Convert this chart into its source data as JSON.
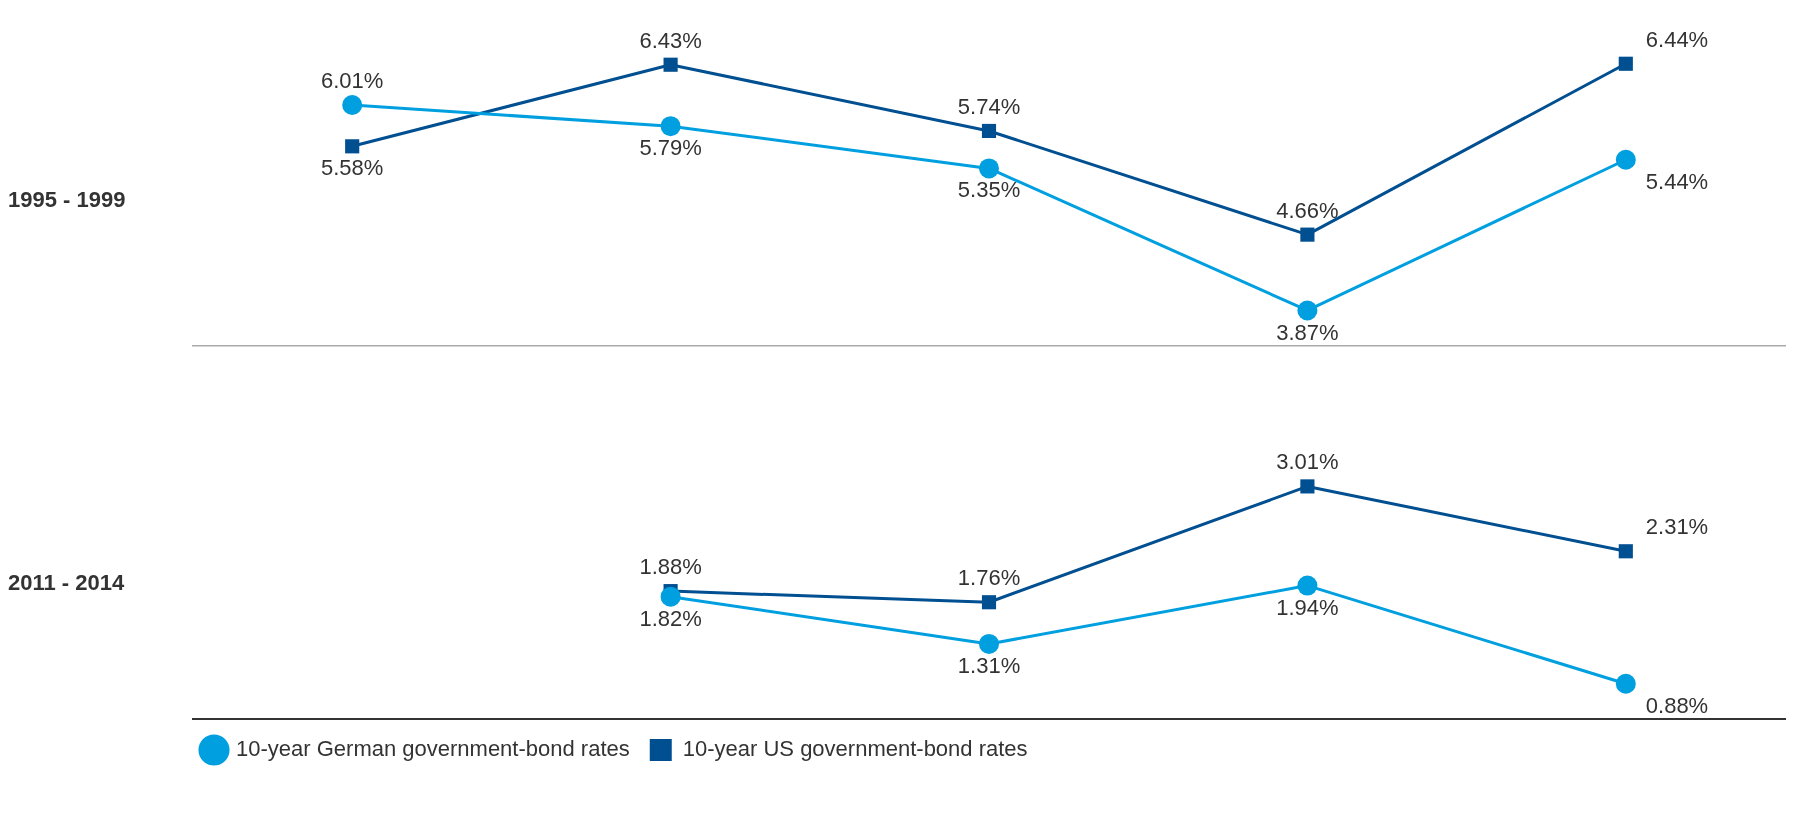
{
  "chart_data": [
    {
      "type": "line",
      "ylabel": "1995 - 1999",
      "categories": [
        null,
        null,
        null,
        null,
        null
      ],
      "tick_labels": false,
      "grid": false,
      "legend": false,
      "line_style": "solid",
      "series": [
        {
          "color": "#009fdf",
          "marker": "circle",
          "values": [
            6.01,
            5.79,
            5.35,
            3.87,
            5.44
          ],
          "value_labels": [
            "6.01%",
            "5.79%",
            "5.35%",
            "3.87%",
            "5.44%"
          ]
        },
        {
          "color": "#004f91",
          "marker": "square",
          "values": [
            5.58,
            6.43,
            5.74,
            4.66,
            6.44
          ],
          "value_labels": [
            "5.58%",
            "6.43%",
            "5.74%",
            "4.66%",
            "6.44%"
          ]
        }
      ]
    },
    {
      "type": "line",
      "ylabel": "2011 - 2014",
      "categories": [
        null,
        null,
        null,
        null,
        null
      ],
      "tick_labels": false,
      "grid": false,
      "legend": "bottom left",
      "line_style": "solid",
      "series": [
        {
          "name": "10-year German government-bond rates",
          "color": "#009fdf",
          "marker": "circle",
          "values": [
            null,
            1.82,
            1.31,
            1.94,
            0.88
          ],
          "value_labels": [
            null,
            "1.82%",
            "1.31%",
            "1.94%",
            "0.88%"
          ]
        },
        {
          "name": "10-year US government-bond rates",
          "color": "#004f91",
          "marker": "square",
          "values": [
            null,
            1.88,
            1.76,
            3.01,
            2.31
          ],
          "value_labels": [
            null,
            "1.88%",
            "1.76%",
            "3.01%",
            "2.31%"
          ]
        }
      ]
    }
  ]
}
